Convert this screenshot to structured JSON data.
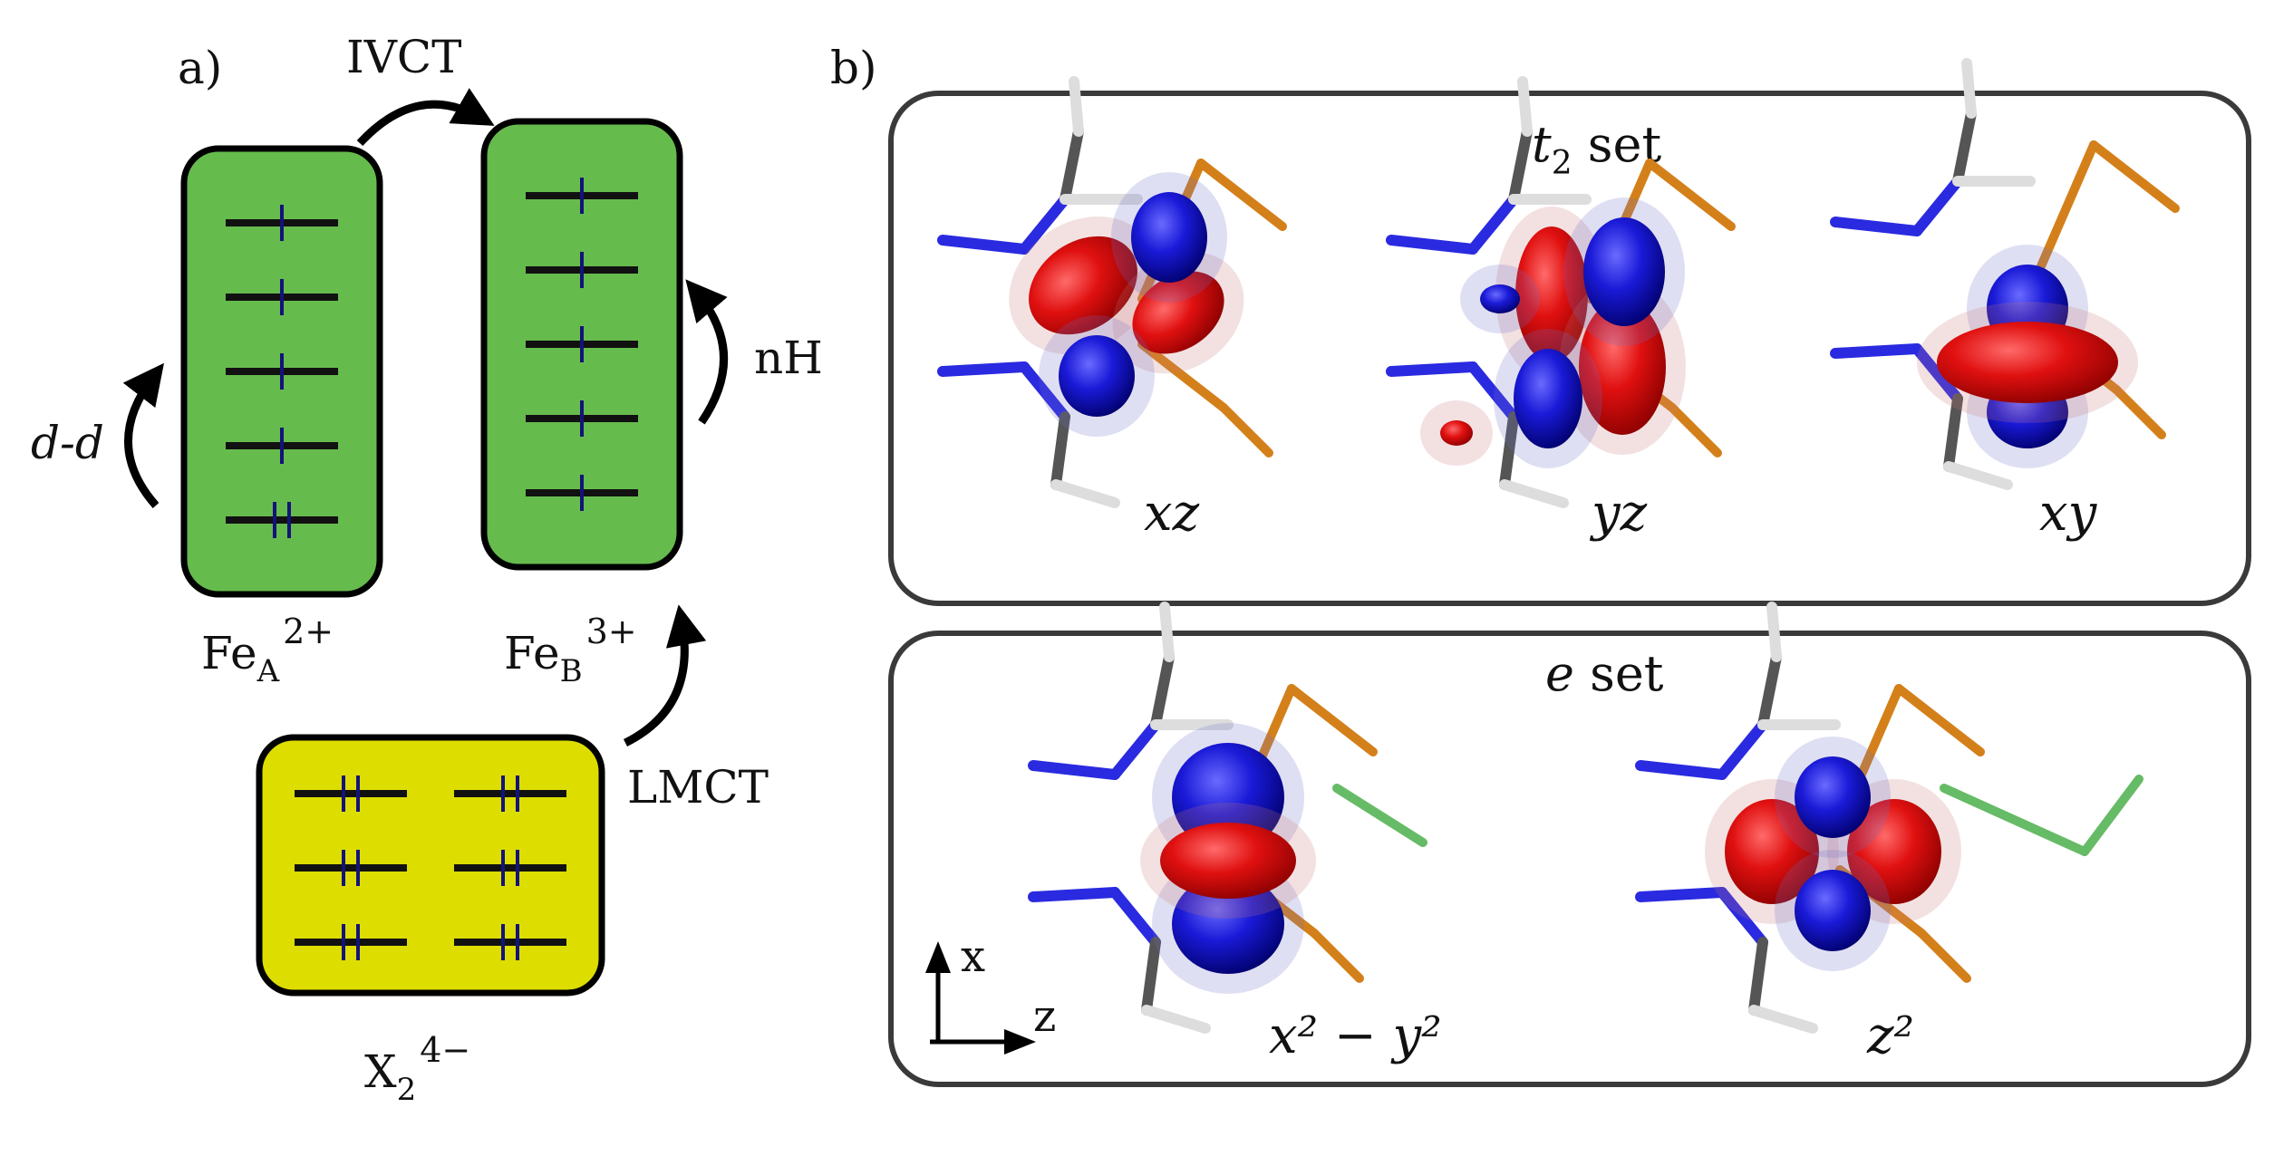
{
  "panel_a": {
    "tag": "a)",
    "ivct": "IVCT",
    "dd": "d-d",
    "nh": "nH",
    "lmct": "LMCT",
    "fe_a": {
      "main": "Fe",
      "sub": "A",
      "sup": "2+"
    },
    "fe_b": {
      "main": "Fe",
      "sub": "B",
      "sup": "3+"
    },
    "x2": {
      "main": "X",
      "sub": "2",
      "sup": "4−"
    },
    "colors": {
      "fe_box": "#66bb4d",
      "x_box": "#dddd00",
      "electron": "#13137a",
      "level": "#111111"
    },
    "fe_a_electrons": [
      1,
      1,
      1,
      1,
      2
    ],
    "fe_b_electrons": [
      1,
      1,
      1,
      1,
      1
    ],
    "x2_electrons": [
      2,
      2,
      2,
      2,
      2,
      2
    ]
  },
  "panel_b": {
    "tag": "b)",
    "t2_title": {
      "main": "t",
      "sub": "2",
      "rest": " set"
    },
    "e_title": {
      "main": "e",
      "rest": " set"
    },
    "orbitals_t2": [
      "xz",
      "yz",
      "xy"
    ],
    "orbitals_e": [
      "x² − y²",
      "z²"
    ],
    "axis_x": "x",
    "axis_z": "z",
    "colors": {
      "lobe_pos": "#e01010",
      "lobe_neg": "#1a1ad8",
      "n_bond": "#2a2ae0",
      "c_bond": "#555555",
      "h_bond": "#dddddd",
      "s_bond": "#d4801a",
      "cl_bond": "#66bb66"
    }
  }
}
